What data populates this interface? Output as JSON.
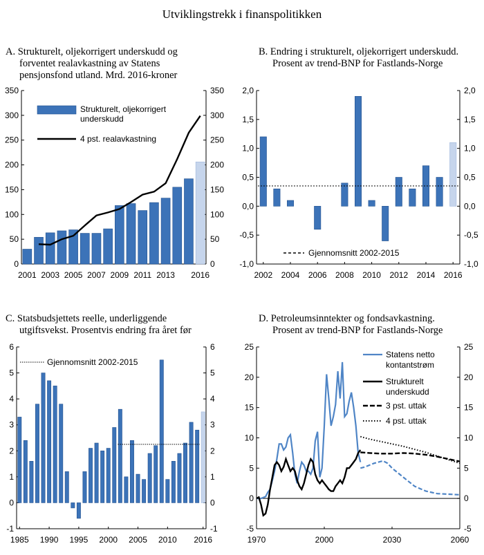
{
  "title": "Utviklingstrekk i finanspolitikken",
  "colors": {
    "bar": "#3c73b8",
    "bar_light": "#c6d5ec",
    "bar_stroke": "#24528f",
    "line_blue": "#4f85c6",
    "black": "#000000",
    "grid": "#000000"
  },
  "chart_data": [
    {
      "id": "A",
      "type": "bar",
      "title_lines": [
        "A.  Strukturelt, oljekorrigert underskudd og",
        "forventet realavkastning av Statens",
        "pensjonsfond utland. Mrd. 2016-kroner"
      ],
      "ylim": [
        0,
        350
      ],
      "yticks": [
        0,
        50,
        100,
        150,
        200,
        250,
        300,
        350
      ],
      "xlim": [
        2000.5,
        2016.5
      ],
      "xticks": [
        2001,
        2003,
        2005,
        2007,
        2009,
        2011,
        2013,
        2016
      ],
      "categories": [
        2001,
        2002,
        2003,
        2004,
        2005,
        2006,
        2007,
        2008,
        2009,
        2010,
        2011,
        2012,
        2013,
        2014,
        2015,
        2016
      ],
      "highlight_last": true,
      "series": [
        {
          "name": "Strukturelt, oljekorrigert underskudd",
          "kind": "bar",
          "values": [
            30,
            54,
            63,
            67,
            69,
            62,
            62,
            71,
            118,
            122,
            108,
            124,
            133,
            155,
            172,
            206
          ]
        },
        {
          "name": "4 pst. realavkastning",
          "kind": "line",
          "x": [
            2002,
            2003,
            2004,
            2005,
            2006,
            2007,
            2008,
            2009,
            2010,
            2011,
            2012,
            2013,
            2014,
            2015,
            2016
          ],
          "values": [
            40,
            39,
            50,
            57,
            78,
            98,
            104,
            111,
            125,
            140,
            146,
            163,
            212,
            265,
            299
          ]
        }
      ],
      "legend": [
        {
          "label_lines": [
            "Strukturelt, oljekorrigert",
            "underskudd"
          ],
          "style": "bar"
        },
        {
          "label_lines": [
            "4 pst. realavkastning"
          ],
          "style": "line-solid"
        }
      ]
    },
    {
      "id": "B",
      "type": "bar",
      "title_lines": [
        "B.  Endring i strukturelt, oljekorrigert underskudd.",
        "Prosent av trend-BNP for Fastlands-Norge"
      ],
      "ylim": [
        -1.0,
        2.0
      ],
      "yticks": [
        -1.0,
        -0.5,
        0.0,
        0.5,
        1.0,
        1.5,
        2.0
      ],
      "ytick_labels": [
        "-1,0",
        "-0,5",
        "0,0",
        "0,5",
        "1,0",
        "1,5",
        "2,0"
      ],
      "xlim": [
        2001.5,
        2016.5
      ],
      "xticks": [
        2002,
        2004,
        2006,
        2008,
        2010,
        2012,
        2014,
        2016
      ],
      "categories": [
        2002,
        2003,
        2004,
        2005,
        2006,
        2007,
        2008,
        2009,
        2010,
        2011,
        2012,
        2013,
        2014,
        2015,
        2016
      ],
      "highlight_last": true,
      "series": [
        {
          "name": "Endring",
          "kind": "bar",
          "values": [
            1.2,
            0.3,
            0.1,
            0.0,
            -0.4,
            0.0,
            0.4,
            1.9,
            0.1,
            -0.6,
            0.5,
            0.3,
            0.7,
            0.5,
            1.1
          ]
        }
      ],
      "average": {
        "value": 0.35,
        "from": 2001.6,
        "to": 2016.4
      },
      "legend": [
        {
          "label_lines": [
            "Gjennomsnitt 2002-2015"
          ],
          "style": "line-dashed"
        }
      ]
    },
    {
      "id": "C",
      "type": "bar",
      "title_lines": [
        "C.  Statsbudsjettets reelle, underliggende",
        "utgiftsvekst. Prosentvis endring fra året før"
      ],
      "ylim": [
        -1,
        6
      ],
      "yticks": [
        -1,
        0,
        1,
        2,
        3,
        4,
        5,
        6
      ],
      "ytick_labels": [
        "-1",
        "0",
        "1",
        "2",
        "3",
        "4",
        "5",
        "6"
      ],
      "xlim": [
        1984.5,
        2016.5
      ],
      "xticks": [
        1985,
        1990,
        1995,
        2000,
        2005,
        2010,
        2016
      ],
      "categories": [
        1985,
        1986,
        1987,
        1988,
        1989,
        1990,
        1991,
        1992,
        1993,
        1994,
        1995,
        1996,
        1997,
        1998,
        1999,
        2000,
        2001,
        2002,
        2003,
        2004,
        2005,
        2006,
        2007,
        2008,
        2009,
        2010,
        2011,
        2012,
        2013,
        2014,
        2015,
        2016
      ],
      "highlight_last": true,
      "series": [
        {
          "name": "Utgiftsvekst",
          "kind": "bar",
          "values": [
            3.3,
            2.4,
            1.6,
            3.8,
            5.0,
            4.7,
            4.5,
            3.8,
            1.2,
            -0.2,
            -0.6,
            1.2,
            2.1,
            2.3,
            2.0,
            2.1,
            2.9,
            3.6,
            1.0,
            2.4,
            1.1,
            0.9,
            1.9,
            2.2,
            5.5,
            0.9,
            1.6,
            1.9,
            2.3,
            3.1,
            2.8,
            3.5
          ]
        }
      ],
      "average": {
        "value": 2.25,
        "from": 2001.6,
        "to": 2015.4
      },
      "legend": [
        {
          "label_lines": [
            "Gjennomsnitt 2002-2015"
          ],
          "style": "line-dotted"
        }
      ]
    },
    {
      "id": "D",
      "type": "line",
      "title_lines": [
        "D.  Petroleumsinntekter og fondsavkastning.",
        "Prosent av trend-BNP for Fastlands-Norge"
      ],
      "ylim": [
        -5,
        25
      ],
      "yticks": [
        -5,
        0,
        5,
        10,
        15,
        20,
        25
      ],
      "ytick_labels": [
        "-5",
        "0",
        "5",
        "10",
        "15",
        "20",
        "25"
      ],
      "xlim": [
        1970,
        2060
      ],
      "xticks": [
        1970,
        2000,
        2030,
        2060
      ],
      "series": [
        {
          "name": "Statens netto kontantstrøm",
          "style": "blue",
          "x": [
            1970,
            1972,
            1974,
            1975,
            1976,
            1977,
            1978,
            1979,
            1980,
            1981,
            1982,
            1983,
            1984,
            1985,
            1986,
            1987,
            1988,
            1989,
            1990,
            1991,
            1992,
            1993,
            1994,
            1995,
            1996,
            1997,
            1998,
            1999,
            2000,
            2001,
            2002,
            2003,
            2004,
            2005,
            2006,
            2007,
            2008,
            2009,
            2010,
            2011,
            2012,
            2013,
            2014,
            2015,
            2016
          ],
          "values": [
            0.0,
            0.0,
            0.3,
            1.0,
            1.5,
            3.0,
            4.5,
            6.5,
            9.0,
            9.0,
            8.0,
            8.5,
            10.0,
            10.5,
            7.5,
            4.0,
            2.5,
            4.5,
            6.0,
            5.5,
            4.5,
            4.5,
            4.0,
            5.0,
            9.5,
            11.0,
            3.5,
            5.0,
            12.0,
            20.5,
            16.5,
            12.0,
            13.5,
            15.5,
            21.0,
            16.5,
            22.5,
            13.5,
            14.0,
            16.0,
            17.5,
            15.0,
            12.0,
            7.5,
            6.0
          ]
        },
        {
          "name": "Statens netto kontantstrøm (projeksjon)",
          "style": "blue-dashed",
          "x": [
            2016,
            2018,
            2020,
            2022,
            2024,
            2026,
            2028,
            2030,
            2035,
            2040,
            2045,
            2050,
            2055,
            2060
          ],
          "values": [
            5.0,
            5.2,
            5.5,
            5.8,
            6.0,
            6.2,
            5.8,
            5.0,
            3.5,
            2.0,
            1.2,
            0.8,
            0.7,
            0.6
          ]
        },
        {
          "name": "Strukturelt underskudd",
          "style": "black",
          "x": [
            1970,
            1971,
            1972,
            1973,
            1974,
            1975,
            1976,
            1977,
            1978,
            1979,
            1980,
            1981,
            1982,
            1983,
            1984,
            1985,
            1986,
            1987,
            1988,
            1989,
            1990,
            1991,
            1992,
            1993,
            1994,
            1995,
            1996,
            1997,
            1998,
            1999,
            2000,
            2001,
            2002,
            2003,
            2004,
            2005,
            2006,
            2007,
            2008,
            2009,
            2010,
            2011,
            2012,
            2013,
            2014,
            2015,
            2016
          ],
          "values": [
            0.0,
            0.2,
            -1.0,
            -2.8,
            -2.5,
            -1.0,
            1.5,
            3.5,
            5.5,
            6.0,
            5.5,
            4.5,
            5.2,
            6.5,
            5.5,
            4.5,
            5.0,
            4.5,
            3.0,
            2.0,
            1.5,
            2.5,
            4.0,
            5.5,
            6.5,
            6.0,
            4.0,
            3.0,
            2.5,
            3.0,
            2.5,
            2.0,
            1.5,
            1.2,
            1.2,
            2.0,
            2.5,
            3.0,
            2.5,
            3.5,
            5.0,
            5.0,
            5.5,
            6.0,
            6.5,
            7.5,
            8.0
          ]
        },
        {
          "name": "3 pst. uttak",
          "style": "black-dashed",
          "x": [
            2016,
            2020,
            2025,
            2030,
            2035,
            2040,
            2045,
            2050,
            2055,
            2060
          ],
          "values": [
            7.6,
            7.5,
            7.4,
            7.4,
            7.5,
            7.4,
            7.2,
            6.9,
            6.5,
            6.1
          ]
        },
        {
          "name": "4 pst. uttak",
          "style": "black-dotted",
          "x": [
            2016,
            2020,
            2025,
            2030,
            2035,
            2040,
            2045,
            2050,
            2055,
            2060
          ],
          "values": [
            10.2,
            9.8,
            9.4,
            9.0,
            8.6,
            8.1,
            7.6,
            7.0,
            6.4,
            5.8
          ]
        }
      ],
      "legend": [
        {
          "label_lines": [
            "Statens netto",
            "kontantstrøm"
          ],
          "style": "blue"
        },
        {
          "label_lines": [
            "Strukturelt",
            "underskudd"
          ],
          "style": "black"
        },
        {
          "label_lines": [
            "3 pst. uttak"
          ],
          "style": "black-dashed"
        },
        {
          "label_lines": [
            "4 pst. uttak"
          ],
          "style": "black-dotted"
        }
      ]
    }
  ]
}
